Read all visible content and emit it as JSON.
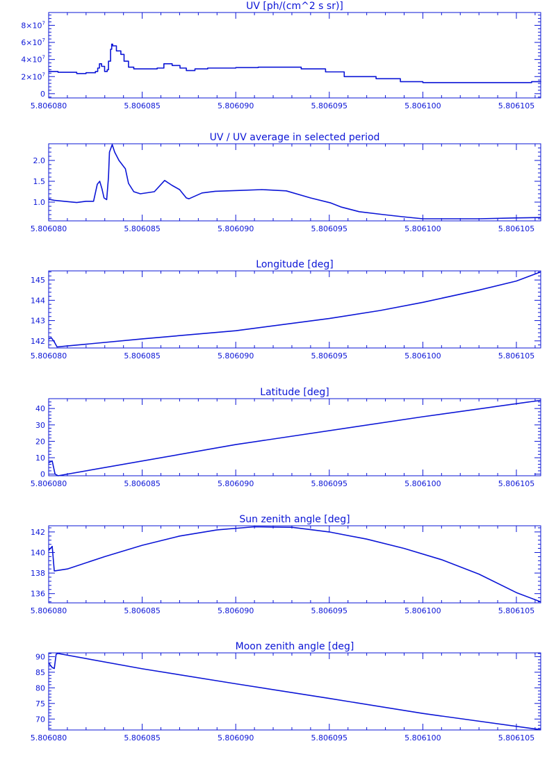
{
  "colors": {
    "line": "#0a14d6",
    "background": "#ffffff"
  },
  "chart_data": [
    {
      "type": "line",
      "title": "UV [ph/(cm^2 s sr)]",
      "xlim": [
        5.80608,
        5.8061063
      ],
      "ylim": [
        -5000000,
        95000000
      ],
      "y_ticks": [
        {
          "value": 0,
          "label": "0"
        },
        {
          "value": 20000000,
          "label": "2×10",
          "exp": "7"
        },
        {
          "value": 40000000,
          "label": "4×10",
          "exp": "7"
        },
        {
          "value": 60000000,
          "label": "6×10",
          "exp": "7"
        },
        {
          "value": 80000000,
          "label": "8×10",
          "exp": "7"
        }
      ],
      "x_ticks": [
        {
          "value": 5.80608,
          "label": "5.806080"
        },
        {
          "value": 5.806085,
          "label": "5.806085"
        },
        {
          "value": 5.80609,
          "label": "5.806090"
        },
        {
          "value": 5.806095,
          "label": "5.806095"
        },
        {
          "value": 5.8061,
          "label": "5.806100"
        },
        {
          "value": 5.806105,
          "label": "5.806105"
        }
      ],
      "step": true,
      "series": [
        {
          "points": [
            [
              5.80608,
              26000000
            ],
            [
              5.8060805,
              25000000
            ],
            [
              5.8060815,
              23500000
            ],
            [
              5.806082,
              24500000
            ],
            [
              5.8060825,
              26000000
            ],
            [
              5.806082624,
              30000000
            ],
            [
              5.806082716,
              35000000
            ],
            [
              5.80608283,
              32000000
            ],
            [
              5.80608299,
              26000000
            ],
            [
              5.80608313,
              28000000
            ],
            [
              5.8060832,
              38000000
            ],
            [
              5.80608331,
              52000000
            ],
            [
              5.80608337,
              58000000
            ],
            [
              5.80608342,
              56000000
            ],
            [
              5.80608362,
              50000000
            ],
            [
              5.80608386,
              46000000
            ],
            [
              5.80608403,
              38000000
            ],
            [
              5.80608427,
              31000000
            ],
            [
              5.80608455,
              29000000
            ],
            [
              5.8060849,
              29000000
            ],
            [
              5.8060858,
              30000000
            ],
            [
              5.80608616,
              35000000
            ],
            [
              5.8060866,
              33000000
            ],
            [
              5.80608702,
              30000000
            ],
            [
              5.80608736,
              27000000
            ],
            [
              5.80608782,
              29000000
            ],
            [
              5.8060885,
              30000000
            ],
            [
              5.8060895,
              30000000
            ],
            [
              5.80609,
              30500000
            ],
            [
              5.8060912,
              31000000
            ],
            [
              5.80609208,
              31000000
            ],
            [
              5.8060935,
              29000000
            ],
            [
              5.8060948,
              25500000
            ],
            [
              5.8060958,
              20000000
            ],
            [
              5.8060975,
              17500000
            ],
            [
              5.8060988,
              14000000
            ],
            [
              5.8061,
              13000000
            ],
            [
              5.806103,
              13000000
            ],
            [
              5.8061049,
              13000000
            ],
            [
              5.806105814,
              14000000
            ],
            [
              5.8061063,
              13500000
            ]
          ]
        }
      ]
    },
    {
      "type": "line",
      "title": "UV / UV average in selected period",
      "xlim": [
        5.80608,
        5.8061063
      ],
      "ylim": [
        0.55,
        2.4
      ],
      "y_ticks": [
        {
          "value": 1.0,
          "label": "1.0"
        },
        {
          "value": 1.5,
          "label": "1.5"
        },
        {
          "value": 2.0,
          "label": "2.0"
        }
      ],
      "x_ticks": [
        {
          "value": 5.80608,
          "label": "5.806080"
        },
        {
          "value": 5.806085,
          "label": "5.806085"
        },
        {
          "value": 5.80609,
          "label": "5.806090"
        },
        {
          "value": 5.806095,
          "label": "5.806095"
        },
        {
          "value": 5.8061,
          "label": "5.806100"
        },
        {
          "value": 5.806105,
          "label": "5.806105"
        }
      ],
      "step": false,
      "series": [
        {
          "points": [
            [
              5.80608,
              1.07
            ],
            [
              5.80608034,
              1.04
            ],
            [
              5.8060815,
              0.99
            ],
            [
              5.806082,
              1.02
            ],
            [
              5.8060824,
              1.02
            ],
            [
              5.8060826,
              1.43
            ],
            [
              5.80608273,
              1.5
            ],
            [
              5.80608285,
              1.32
            ],
            [
              5.80608296,
              1.1
            ],
            [
              5.8060831,
              1.06
            ],
            [
              5.8060832,
              1.6
            ],
            [
              5.80608325,
              2.2
            ],
            [
              5.8060834,
              2.38
            ],
            [
              5.80608353,
              2.2
            ],
            [
              5.80608376,
              2.0
            ],
            [
              5.8060841,
              1.8
            ],
            [
              5.80608427,
              1.45
            ],
            [
              5.80608455,
              1.25
            ],
            [
              5.8060849,
              1.2
            ],
            [
              5.80608565,
              1.25
            ],
            [
              5.8060862,
              1.52
            ],
            [
              5.8060866,
              1.4
            ],
            [
              5.806087,
              1.3
            ],
            [
              5.80608736,
              1.1
            ],
            [
              5.8060875,
              1.08
            ],
            [
              5.8060882,
              1.22
            ],
            [
              5.8060889,
              1.26
            ],
            [
              5.8060902,
              1.28
            ],
            [
              5.8060914,
              1.3
            ],
            [
              5.8060927,
              1.27
            ],
            [
              5.806094,
              1.1
            ],
            [
              5.80609508,
              0.98
            ],
            [
              5.80609565,
              0.88
            ],
            [
              5.8060966,
              0.77
            ],
            [
              5.8060979,
              0.7
            ],
            [
              5.8060989,
              0.65
            ],
            [
              5.8061,
              0.6
            ],
            [
              5.806103,
              0.6
            ],
            [
              5.8061049,
              0.62
            ],
            [
              5.8061063,
              0.63
            ]
          ]
        }
      ]
    },
    {
      "type": "line",
      "title": "Longitude [deg]",
      "xlim": [
        5.80608,
        5.8061063
      ],
      "ylim": [
        141.65,
        145.45
      ],
      "y_ticks": [
        {
          "value": 142,
          "label": "142"
        },
        {
          "value": 143,
          "label": "143"
        },
        {
          "value": 144,
          "label": "144"
        },
        {
          "value": 145,
          "label": "145"
        }
      ],
      "x_ticks": [
        {
          "value": 5.80608,
          "label": "5.806080"
        },
        {
          "value": 5.806085,
          "label": "5.806085"
        },
        {
          "value": 5.80609,
          "label": "5.806090"
        },
        {
          "value": 5.806095,
          "label": "5.806095"
        },
        {
          "value": 5.8061,
          "label": "5.806100"
        },
        {
          "value": 5.806105,
          "label": "5.806105"
        }
      ],
      "step": false,
      "series": [
        {
          "points": [
            [
              5.80608,
              142.1
            ],
            [
              5.80608015,
              142.15
            ],
            [
              5.8060803,
              141.95
            ],
            [
              5.80608045,
              141.7
            ],
            [
              5.806081,
              141.75
            ],
            [
              5.806085,
              142.1
            ],
            [
              5.80609,
              142.5
            ],
            [
              5.806095,
              143.1
            ],
            [
              5.80609773,
              143.5
            ],
            [
              5.8061,
              143.9
            ],
            [
              5.806103,
              144.5
            ],
            [
              5.806105,
              144.95
            ],
            [
              5.8061063,
              145.4
            ]
          ]
        }
      ]
    },
    {
      "type": "line",
      "title": "Latitude [deg]",
      "xlim": [
        5.80608,
        5.8061063
      ],
      "ylim": [
        -1,
        46
      ],
      "y_ticks": [
        {
          "value": 0,
          "label": "0"
        },
        {
          "value": 10,
          "label": "10"
        },
        {
          "value": 20,
          "label": "20"
        },
        {
          "value": 30,
          "label": "30"
        },
        {
          "value": 40,
          "label": "40"
        }
      ],
      "x_ticks": [
        {
          "value": 5.80608,
          "label": "5.806080"
        },
        {
          "value": 5.806085,
          "label": "5.806085"
        },
        {
          "value": 5.80609,
          "label": "5.806090"
        },
        {
          "value": 5.806095,
          "label": "5.806095"
        },
        {
          "value": 5.8061,
          "label": "5.806100"
        },
        {
          "value": 5.806105,
          "label": "5.806105"
        }
      ],
      "step": false,
      "series": [
        {
          "points": [
            [
              5.80608,
              7
            ],
            [
              5.80608019,
              8
            ],
            [
              5.80608034,
              0
            ],
            [
              5.8060805,
              -1
            ],
            [
              5.80609,
              18
            ],
            [
              5.8061,
              35
            ],
            [
              5.8061063,
              45
            ]
          ]
        }
      ]
    },
    {
      "type": "line",
      "title": "Sun zenith angle [deg]",
      "xlim": [
        5.80608,
        5.8061063
      ],
      "ylim": [
        135.1,
        142.6
      ],
      "y_ticks": [
        {
          "value": 136,
          "label": "136"
        },
        {
          "value": 138,
          "label": "138"
        },
        {
          "value": 140,
          "label": "140"
        },
        {
          "value": 142,
          "label": "142"
        }
      ],
      "x_ticks": [
        {
          "value": 5.80608,
          "label": "5.806080"
        },
        {
          "value": 5.806085,
          "label": "5.806085"
        },
        {
          "value": 5.80609,
          "label": "5.806090"
        },
        {
          "value": 5.806095,
          "label": "5.806095"
        },
        {
          "value": 5.8061,
          "label": "5.806100"
        },
        {
          "value": 5.806105,
          "label": "5.806105"
        }
      ],
      "step": false,
      "series": [
        {
          "points": [
            [
              5.80608,
              140.2
            ],
            [
              5.80608019,
              140.6
            ],
            [
              5.8060803,
              138.2
            ],
            [
              5.806081,
              138.4
            ],
            [
              5.806083,
              139.6
            ],
            [
              5.806085,
              140.7
            ],
            [
              5.806087,
              141.6
            ],
            [
              5.806089,
              142.2
            ],
            [
              5.806091,
              142.5
            ],
            [
              5.806093,
              142.45
            ],
            [
              5.806095,
              142.0
            ],
            [
              5.806097,
              141.3
            ],
            [
              5.806099,
              140.4
            ],
            [
              5.806101,
              139.3
            ],
            [
              5.806103,
              137.9
            ],
            [
              5.806105,
              136.1
            ],
            [
              5.8061063,
              135.2
            ]
          ]
        }
      ]
    },
    {
      "type": "line",
      "title": "Moon zenith angle [deg]",
      "xlim": [
        5.80608,
        5.8061063
      ],
      "ylim": [
        66.5,
        91.2
      ],
      "y_ticks": [
        {
          "value": 70,
          "label": "70"
        },
        {
          "value": 75,
          "label": "75"
        },
        {
          "value": 80,
          "label": "80"
        },
        {
          "value": 85,
          "label": "85"
        },
        {
          "value": 90,
          "label": "90"
        }
      ],
      "x_ticks": [
        {
          "value": 5.80608,
          "label": "5.806080"
        },
        {
          "value": 5.806085,
          "label": "5.806085"
        },
        {
          "value": 5.80609,
          "label": "5.806090"
        },
        {
          "value": 5.806095,
          "label": "5.806095"
        },
        {
          "value": 5.8061,
          "label": "5.806100"
        },
        {
          "value": 5.806105,
          "label": "5.806105"
        }
      ],
      "step": false,
      "series": [
        {
          "points": [
            [
              5.80608,
              88
            ],
            [
              5.80608019,
              86.5
            ],
            [
              5.8060803,
              86.2
            ],
            [
              5.8060804,
              90.8
            ],
            [
              5.8060805,
              91
            ],
            [
              5.806085,
              86.1
            ],
            [
              5.80609,
              81.3
            ],
            [
              5.806095,
              76.6
            ],
            [
              5.8061,
              71.8
            ],
            [
              5.8061063,
              66.6
            ]
          ]
        }
      ]
    }
  ]
}
